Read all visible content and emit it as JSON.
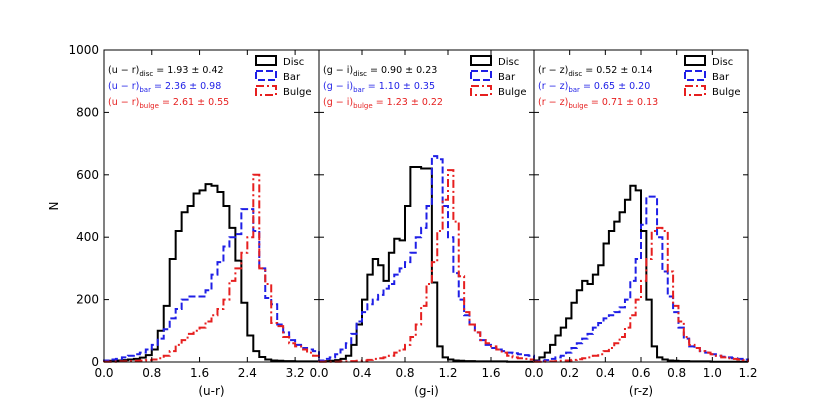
{
  "chart_data": [
    {
      "type": "histogram-step",
      "ylabel": "N",
      "xlabel": "(u-r)",
      "xlim": [
        0.0,
        3.6
      ],
      "ylim": [
        0,
        1000
      ],
      "xticks": [
        "0.0",
        "0.8",
        "1.6",
        "2.4",
        "3.2"
      ],
      "xtick_values": [
        0.0,
        0.8,
        1.6,
        2.4,
        3.2
      ],
      "yticks": [
        "0",
        "200",
        "400",
        "600",
        "800",
        "1000"
      ],
      "ytick_values": [
        0,
        200,
        400,
        600,
        800,
        1000
      ],
      "stats": [
        {
          "base": "(u − r)",
          "sub": "disc",
          "value": " = 1.93 ± 0.42",
          "color": "#000000"
        },
        {
          "base": "(u − r)",
          "sub": "bar",
          "value": " = 2.36 ± 0.98",
          "color": "#1f1fe6"
        },
        {
          "base": "(u − r)",
          "sub": "bulge",
          "value": " = 2.61 ± 0.55",
          "color": "#e61f1f"
        }
      ],
      "series": [
        {
          "name": "Disc",
          "color": "#000000",
          "dash": "solid",
          "edges": [
            0.0,
            0.1,
            0.2,
            0.3,
            0.4,
            0.5,
            0.6,
            0.7,
            0.8,
            0.9,
            1.0,
            1.1,
            1.2,
            1.3,
            1.4,
            1.5,
            1.6,
            1.7,
            1.8,
            1.9,
            2.0,
            2.1,
            2.2,
            2.3,
            2.4,
            2.5,
            2.6,
            2.7,
            2.8,
            2.9,
            3.0,
            3.1,
            3.2,
            3.3,
            3.4,
            3.5,
            3.6
          ],
          "counts": [
            4,
            4,
            5,
            6,
            8,
            10,
            14,
            22,
            40,
            100,
            180,
            330,
            420,
            480,
            500,
            540,
            550,
            570,
            565,
            545,
            500,
            430,
            325,
            190,
            85,
            35,
            16,
            8,
            5,
            4,
            3,
            3,
            2,
            2,
            2,
            2
          ]
        },
        {
          "name": "Bar",
          "color": "#1f1fe6",
          "dash": "dashed",
          "edges": [
            0.0,
            0.1,
            0.2,
            0.3,
            0.4,
            0.5,
            0.6,
            0.7,
            0.8,
            0.9,
            1.0,
            1.1,
            1.2,
            1.3,
            1.4,
            1.5,
            1.6,
            1.7,
            1.8,
            1.9,
            2.0,
            2.1,
            2.2,
            2.3,
            2.4,
            2.5,
            2.6,
            2.7,
            2.8,
            2.9,
            3.0,
            3.1,
            3.2,
            3.3,
            3.4,
            3.5,
            3.6
          ],
          "counts": [
            5,
            8,
            10,
            15,
            20,
            25,
            30,
            40,
            55,
            75,
            105,
            140,
            170,
            200,
            210,
            210,
            210,
            230,
            280,
            320,
            370,
            400,
            410,
            490,
            490,
            420,
            300,
            205,
            185,
            120,
            95,
            70,
            55,
            45,
            40,
            35
          ]
        },
        {
          "name": "Bulge",
          "color": "#e61f1f",
          "dash": "dashdot",
          "edges": [
            0.0,
            0.1,
            0.2,
            0.3,
            0.4,
            0.5,
            0.6,
            0.7,
            0.8,
            0.9,
            1.0,
            1.1,
            1.2,
            1.3,
            1.4,
            1.5,
            1.6,
            1.7,
            1.8,
            1.9,
            2.0,
            2.1,
            2.2,
            2.3,
            2.4,
            2.5,
            2.6,
            2.7,
            2.8,
            2.9,
            3.0,
            3.1,
            3.2,
            3.3,
            3.4,
            3.5,
            3.6
          ],
          "counts": [
            1,
            1,
            2,
            2,
            3,
            4,
            5,
            6,
            8,
            12,
            20,
            35,
            55,
            70,
            90,
            100,
            110,
            130,
            150,
            170,
            200,
            260,
            300,
            350,
            400,
            600,
            300,
            250,
            125,
            115,
            80,
            60,
            50,
            40,
            30,
            20
          ]
        }
      ]
    },
    {
      "type": "histogram-step",
      "xlabel": "(g-i)",
      "xlim": [
        0.0,
        2.0
      ],
      "ylim": [
        0,
        1000
      ],
      "xticks": [
        "0.0",
        "0.4",
        "0.8",
        "1.2",
        "1.6"
      ],
      "xtick_values": [
        0.0,
        0.4,
        0.8,
        1.2,
        1.6
      ],
      "stats": [
        {
          "base": "(g − i)",
          "sub": "disc",
          "value": " = 0.90 ± 0.23",
          "color": "#000000"
        },
        {
          "base": "(g − i)",
          "sub": "bar",
          "value": " = 1.10 ± 0.35",
          "color": "#1f1fe6"
        },
        {
          "base": "(g − i)",
          "sub": "bulge",
          "value": " = 1.23 ± 0.22",
          "color": "#e61f1f"
        }
      ],
      "series": [
        {
          "name": "Disc",
          "color": "#000000",
          "dash": "solid",
          "edges": [
            0.0,
            0.05,
            0.1,
            0.15,
            0.2,
            0.25,
            0.3,
            0.35,
            0.4,
            0.45,
            0.5,
            0.55,
            0.6,
            0.65,
            0.7,
            0.75,
            0.8,
            0.85,
            0.9,
            0.95,
            1.0,
            1.05,
            1.1,
            1.15,
            1.2,
            1.25,
            1.3,
            1.35,
            1.4,
            1.45,
            1.5,
            1.55,
            1.6,
            1.65,
            1.7,
            1.75,
            1.8,
            1.85,
            1.9,
            1.95,
            2.0
          ],
          "counts": [
            2,
            3,
            4,
            6,
            10,
            20,
            55,
            120,
            200,
            280,
            330,
            310,
            260,
            350,
            395,
            390,
            500,
            625,
            625,
            620,
            620,
            255,
            50,
            15,
            8,
            5,
            4,
            3,
            3,
            2,
            2,
            2,
            2,
            2,
            2,
            1,
            1,
            1,
            1,
            1
          ]
        },
        {
          "name": "Bar",
          "color": "#1f1fe6",
          "dash": "dashed",
          "edges": [
            0.0,
            0.05,
            0.1,
            0.15,
            0.2,
            0.25,
            0.3,
            0.35,
            0.4,
            0.45,
            0.5,
            0.55,
            0.6,
            0.65,
            0.7,
            0.75,
            0.8,
            0.85,
            0.9,
            0.95,
            1.0,
            1.05,
            1.1,
            1.15,
            1.2,
            1.25,
            1.3,
            1.35,
            1.4,
            1.45,
            1.5,
            1.55,
            1.6,
            1.65,
            1.7,
            1.75,
            1.8,
            1.85,
            1.9,
            1.95,
            2.0
          ],
          "counts": [
            5,
            10,
            15,
            25,
            40,
            60,
            90,
            130,
            160,
            185,
            200,
            215,
            235,
            250,
            280,
            300,
            320,
            350,
            400,
            430,
            500,
            660,
            650,
            500,
            400,
            285,
            200,
            150,
            120,
            95,
            70,
            55,
            45,
            40,
            35,
            30,
            28,
            25,
            22,
            20
          ]
        },
        {
          "name": "Bulge",
          "color": "#e61f1f",
          "dash": "dashdot",
          "edges": [
            0.0,
            0.05,
            0.1,
            0.15,
            0.2,
            0.25,
            0.3,
            0.35,
            0.4,
            0.45,
            0.5,
            0.55,
            0.6,
            0.65,
            0.7,
            0.75,
            0.8,
            0.85,
            0.9,
            0.95,
            1.0,
            1.05,
            1.1,
            1.15,
            1.2,
            1.25,
            1.3,
            1.35,
            1.4,
            1.45,
            1.5,
            1.55,
            1.6,
            1.65,
            1.7,
            1.75,
            1.8,
            1.85,
            1.9,
            1.95,
            2.0
          ],
          "counts": [
            1,
            1,
            1,
            1,
            2,
            2,
            3,
            4,
            5,
            7,
            10,
            12,
            15,
            20,
            30,
            40,
            55,
            80,
            120,
            180,
            250,
            320,
            420,
            520,
            615,
            450,
            275,
            160,
            120,
            95,
            70,
            60,
            50,
            40,
            30,
            20,
            15,
            12,
            10,
            8
          ]
        }
      ]
    },
    {
      "type": "histogram-step",
      "xlabel": "(r-z)",
      "xlim": [
        0.0,
        1.2
      ],
      "ylim": [
        0,
        1000
      ],
      "xticks": [
        "0.0",
        "0.2",
        "0.4",
        "0.6",
        "0.8",
        "1.0",
        "1.2"
      ],
      "xtick_values": [
        0.0,
        0.2,
        0.4,
        0.6,
        0.8,
        1.0,
        1.2
      ],
      "stats": [
        {
          "base": "(r − z)",
          "sub": "disc",
          "value": " = 0.52 ± 0.14",
          "color": "#000000"
        },
        {
          "base": "(r − z)",
          "sub": "bar",
          "value": " = 0.65 ± 0.20",
          "color": "#1f1fe6"
        },
        {
          "base": "(r − z)",
          "sub": "bulge",
          "value": " = 0.71 ± 0.13",
          "color": "#e61f1f"
        }
      ],
      "series": [
        {
          "name": "Disc",
          "color": "#000000",
          "dash": "solid",
          "edges": [
            0.0,
            0.03,
            0.06,
            0.09,
            0.12,
            0.15,
            0.18,
            0.21,
            0.24,
            0.27,
            0.3,
            0.33,
            0.36,
            0.39,
            0.42,
            0.45,
            0.48,
            0.51,
            0.54,
            0.57,
            0.6,
            0.63,
            0.66,
            0.69,
            0.72,
            0.75,
            0.78,
            0.81,
            0.84,
            0.87,
            0.9,
            0.93,
            0.96,
            0.99,
            1.02,
            1.05,
            1.08,
            1.11,
            1.14,
            1.17,
            1.2
          ],
          "counts": [
            5,
            15,
            30,
            55,
            85,
            110,
            140,
            190,
            230,
            260,
            250,
            280,
            310,
            380,
            420,
            450,
            480,
            520,
            565,
            550,
            420,
            200,
            50,
            15,
            8,
            5,
            4,
            3,
            3,
            2,
            2,
            2,
            2,
            1,
            1,
            1,
            1,
            1,
            1,
            1
          ]
        },
        {
          "name": "Bar",
          "color": "#1f1fe6",
          "dash": "dashed",
          "edges": [
            0.0,
            0.03,
            0.06,
            0.09,
            0.12,
            0.15,
            0.18,
            0.21,
            0.24,
            0.27,
            0.3,
            0.33,
            0.36,
            0.39,
            0.42,
            0.45,
            0.48,
            0.51,
            0.54,
            0.57,
            0.6,
            0.63,
            0.66,
            0.69,
            0.72,
            0.75,
            0.78,
            0.81,
            0.84,
            0.87,
            0.9,
            0.93,
            0.96,
            0.99,
            1.02,
            1.05,
            1.08,
            1.11,
            1.14,
            1.17,
            1.2
          ],
          "counts": [
            2,
            4,
            6,
            10,
            15,
            20,
            30,
            45,
            60,
            75,
            90,
            110,
            125,
            140,
            150,
            160,
            175,
            200,
            260,
            330,
            440,
            530,
            530,
            400,
            290,
            210,
            160,
            110,
            75,
            50,
            45,
            35,
            30,
            25,
            20,
            17,
            15,
            12,
            10,
            8
          ]
        },
        {
          "name": "Bulge",
          "color": "#e61f1f",
          "dash": "dashdot",
          "edges": [
            0.0,
            0.03,
            0.06,
            0.09,
            0.12,
            0.15,
            0.18,
            0.21,
            0.24,
            0.27,
            0.3,
            0.33,
            0.36,
            0.39,
            0.42,
            0.45,
            0.48,
            0.51,
            0.54,
            0.57,
            0.6,
            0.63,
            0.66,
            0.69,
            0.72,
            0.75,
            0.78,
            0.81,
            0.84,
            0.87,
            0.9,
            0.93,
            0.96,
            0.99,
            1.02,
            1.05,
            1.08,
            1.11,
            1.14,
            1.17,
            1.2
          ],
          "counts": [
            1,
            1,
            2,
            2,
            3,
            4,
            5,
            7,
            9,
            12,
            15,
            20,
            25,
            35,
            45,
            60,
            80,
            110,
            150,
            200,
            260,
            330,
            420,
            430,
            420,
            290,
            180,
            130,
            80,
            55,
            45,
            35,
            30,
            25,
            20,
            15,
            12,
            10,
            8,
            6
          ]
        }
      ]
    }
  ]
}
